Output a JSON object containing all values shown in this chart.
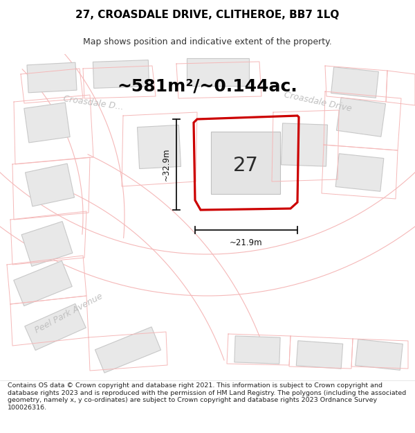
{
  "title": "27, CROASDALE DRIVE, CLITHEROE, BB7 1LQ",
  "subtitle": "Map shows position and indicative extent of the property.",
  "footer": "Contains OS data © Crown copyright and database right 2021. This information is subject to Crown copyright and database rights 2023 and is reproduced with the permission of HM Land Registry. The polygons (including the associated geometry, namely x, y co-ordinates) are subject to Crown copyright and database rights 2023 Ordnance Survey 100026316.",
  "area_label": "~581m²/~0.144ac.",
  "width_label": "~21.9m",
  "height_label": "~32.9m",
  "plot_number": "27",
  "bg_color": "#ffffff",
  "map_bg": "#ffffff",
  "road_outline": "#f5b8b8",
  "parcel_outline": "#f5b8b8",
  "building_fill": "#e8e8e8",
  "building_edge": "#c8c8c8",
  "plot_edge": "#cc0000",
  "road_text_color": "#c0c0c0",
  "dim_color": "#111111",
  "title_size": 11,
  "subtitle_size": 9,
  "footer_size": 6.8,
  "area_size": 18,
  "number_size": 22,
  "dim_text_size": 8.5,
  "road_label_size": 9
}
